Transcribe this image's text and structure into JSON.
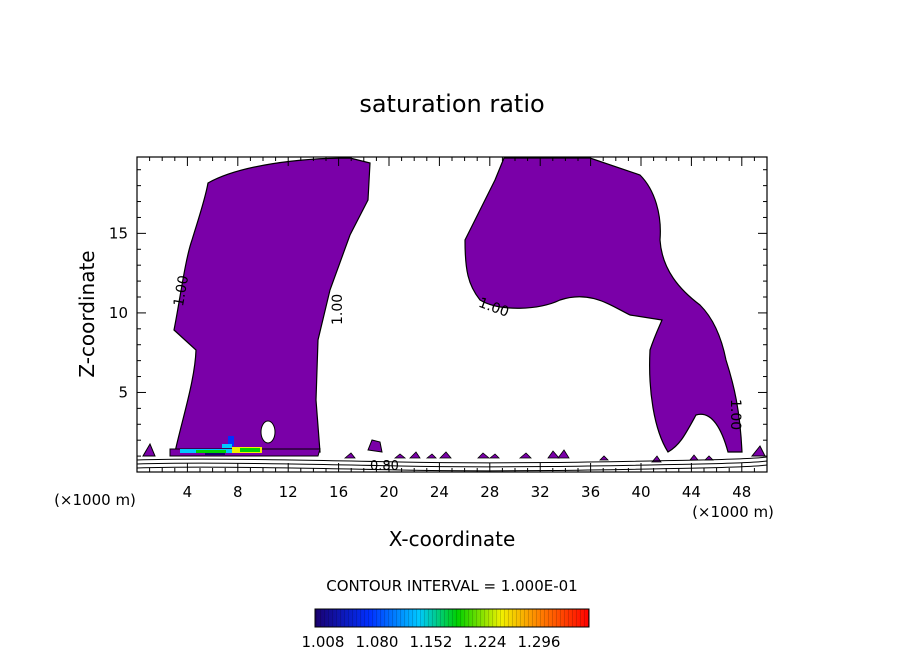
{
  "chart_data": {
    "type": "contour",
    "title": "saturation ratio",
    "xlabel": "X-coordinate",
    "ylabel": "Z-coordinate",
    "x_unit_label": "(×1000 m)",
    "x_unit_label_right": "(×1000 m)",
    "xlim": [
      0,
      50
    ],
    "ylim": [
      0,
      19.8
    ],
    "x_ticks": [
      "4",
      "8",
      "12",
      "16",
      "20",
      "24",
      "28",
      "32",
      "36",
      "40",
      "44",
      "48"
    ],
    "y_ticks": [
      "5",
      "10",
      "15"
    ],
    "contour_interval_text": "CONTOUR INTERVAL = 1.000E-01",
    "contour_labels": [
      "1.00",
      "1.00",
      "1.00",
      "1.00",
      "0.80"
    ],
    "colorbar_labels": [
      "1.008",
      "1.080",
      "1.152",
      "1.224",
      "1.296"
    ],
    "colors": {
      "fill": "#7a00a8",
      "colorbar": [
        "#1a0070",
        "#0030ff",
        "#00c8ff",
        "#00d000",
        "#f0f000",
        "#ff8000",
        "#ff0000"
      ]
    }
  }
}
